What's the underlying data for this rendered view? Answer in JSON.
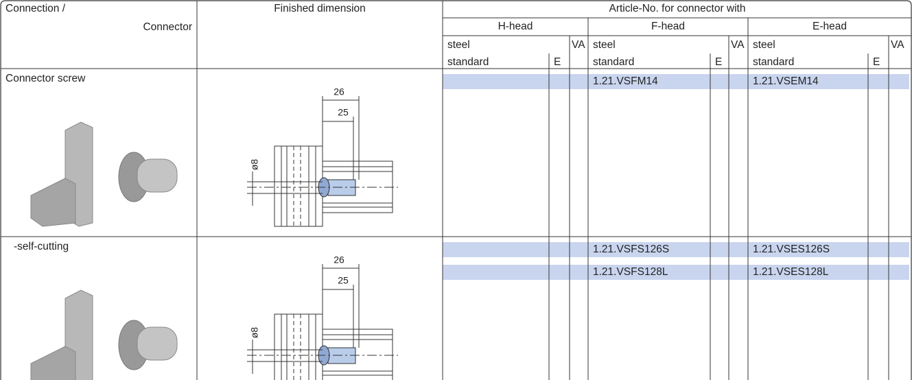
{
  "header": {
    "connection": "Connection /",
    "connector": "Connector",
    "dimension": "Finished dimension",
    "group": "Article-No. for connector with",
    "heads": [
      {
        "name": "H-head",
        "material": "steel",
        "standard": "standard",
        "e": "E",
        "va": "VA"
      },
      {
        "name": "F-head",
        "material": "steel",
        "standard": "standard",
        "e": "E",
        "va": "VA"
      },
      {
        "name": "E-head",
        "material": "steel",
        "standard": "standard",
        "e": "E",
        "va": "VA"
      }
    ]
  },
  "rows": [
    {
      "label": "Connector screw",
      "dims": {
        "outer": 26,
        "inner": 25,
        "diameter": "ø8"
      },
      "articles": [
        {
          "f": "1.21.VSFM14",
          "e": "1.21.VSEM14"
        }
      ]
    },
    {
      "label": "-self-cutting",
      "dims": {
        "outer": 26,
        "inner": 25,
        "diameter": "ø8"
      },
      "articles": [
        {
          "f": "1.21.VSFS126S",
          "e": "1.21.VSES126S"
        },
        {
          "f": "1.21.VSFS128L",
          "e": "1.21.VSES128L"
        }
      ]
    }
  ]
}
